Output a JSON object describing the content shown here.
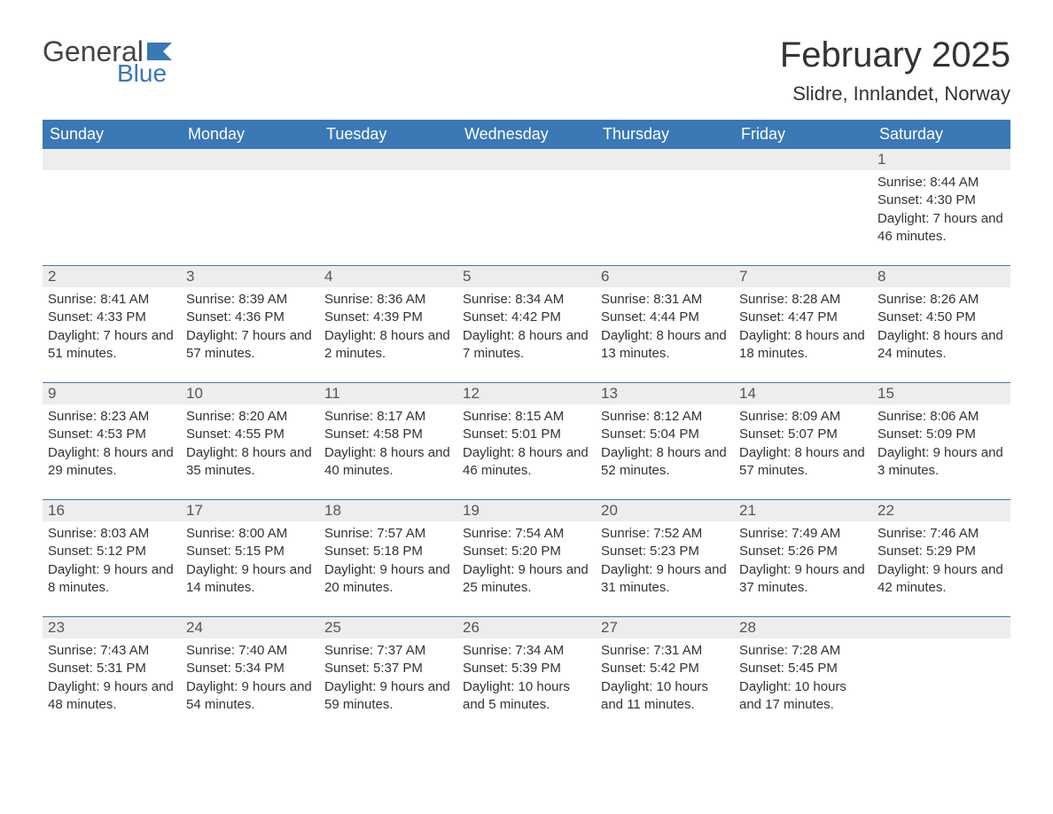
{
  "logo": {
    "general": "General",
    "blue": "Blue"
  },
  "title": "February 2025",
  "location": "Slidre, Innlandet, Norway",
  "colors": {
    "header_bg": "#3a78b6",
    "header_text": "#ffffff",
    "daynum_bg": "#ededed",
    "border": "#3a78b6",
    "text": "#333333",
    "logo_blue": "#3a78b6"
  },
  "day_names": [
    "Sunday",
    "Monday",
    "Tuesday",
    "Wednesday",
    "Thursday",
    "Friday",
    "Saturday"
  ],
  "weeks": [
    [
      null,
      null,
      null,
      null,
      null,
      null,
      {
        "n": "1",
        "sr": "8:44 AM",
        "ss": "4:30 PM",
        "dl": "7 hours and 46 minutes."
      }
    ],
    [
      {
        "n": "2",
        "sr": "8:41 AM",
        "ss": "4:33 PM",
        "dl": "7 hours and 51 minutes."
      },
      {
        "n": "3",
        "sr": "8:39 AM",
        "ss": "4:36 PM",
        "dl": "7 hours and 57 minutes."
      },
      {
        "n": "4",
        "sr": "8:36 AM",
        "ss": "4:39 PM",
        "dl": "8 hours and 2 minutes."
      },
      {
        "n": "5",
        "sr": "8:34 AM",
        "ss": "4:42 PM",
        "dl": "8 hours and 7 minutes."
      },
      {
        "n": "6",
        "sr": "8:31 AM",
        "ss": "4:44 PM",
        "dl": "8 hours and 13 minutes."
      },
      {
        "n": "7",
        "sr": "8:28 AM",
        "ss": "4:47 PM",
        "dl": "8 hours and 18 minutes."
      },
      {
        "n": "8",
        "sr": "8:26 AM",
        "ss": "4:50 PM",
        "dl": "8 hours and 24 minutes."
      }
    ],
    [
      {
        "n": "9",
        "sr": "8:23 AM",
        "ss": "4:53 PM",
        "dl": "8 hours and 29 minutes."
      },
      {
        "n": "10",
        "sr": "8:20 AM",
        "ss": "4:55 PM",
        "dl": "8 hours and 35 minutes."
      },
      {
        "n": "11",
        "sr": "8:17 AM",
        "ss": "4:58 PM",
        "dl": "8 hours and 40 minutes."
      },
      {
        "n": "12",
        "sr": "8:15 AM",
        "ss": "5:01 PM",
        "dl": "8 hours and 46 minutes."
      },
      {
        "n": "13",
        "sr": "8:12 AM",
        "ss": "5:04 PM",
        "dl": "8 hours and 52 minutes."
      },
      {
        "n": "14",
        "sr": "8:09 AM",
        "ss": "5:07 PM",
        "dl": "8 hours and 57 minutes."
      },
      {
        "n": "15",
        "sr": "8:06 AM",
        "ss": "5:09 PM",
        "dl": "9 hours and 3 minutes."
      }
    ],
    [
      {
        "n": "16",
        "sr": "8:03 AM",
        "ss": "5:12 PM",
        "dl": "9 hours and 8 minutes."
      },
      {
        "n": "17",
        "sr": "8:00 AM",
        "ss": "5:15 PM",
        "dl": "9 hours and 14 minutes."
      },
      {
        "n": "18",
        "sr": "7:57 AM",
        "ss": "5:18 PM",
        "dl": "9 hours and 20 minutes."
      },
      {
        "n": "19",
        "sr": "7:54 AM",
        "ss": "5:20 PM",
        "dl": "9 hours and 25 minutes."
      },
      {
        "n": "20",
        "sr": "7:52 AM",
        "ss": "5:23 PM",
        "dl": "9 hours and 31 minutes."
      },
      {
        "n": "21",
        "sr": "7:49 AM",
        "ss": "5:26 PM",
        "dl": "9 hours and 37 minutes."
      },
      {
        "n": "22",
        "sr": "7:46 AM",
        "ss": "5:29 PM",
        "dl": "9 hours and 42 minutes."
      }
    ],
    [
      {
        "n": "23",
        "sr": "7:43 AM",
        "ss": "5:31 PM",
        "dl": "9 hours and 48 minutes."
      },
      {
        "n": "24",
        "sr": "7:40 AM",
        "ss": "5:34 PM",
        "dl": "9 hours and 54 minutes."
      },
      {
        "n": "25",
        "sr": "7:37 AM",
        "ss": "5:37 PM",
        "dl": "9 hours and 59 minutes."
      },
      {
        "n": "26",
        "sr": "7:34 AM",
        "ss": "5:39 PM",
        "dl": "10 hours and 5 minutes."
      },
      {
        "n": "27",
        "sr": "7:31 AM",
        "ss": "5:42 PM",
        "dl": "10 hours and 11 minutes."
      },
      {
        "n": "28",
        "sr": "7:28 AM",
        "ss": "5:45 PM",
        "dl": "10 hours and 17 minutes."
      },
      null
    ]
  ],
  "labels": {
    "sunrise": "Sunrise: ",
    "sunset": "Sunset: ",
    "daylight": "Daylight: "
  }
}
